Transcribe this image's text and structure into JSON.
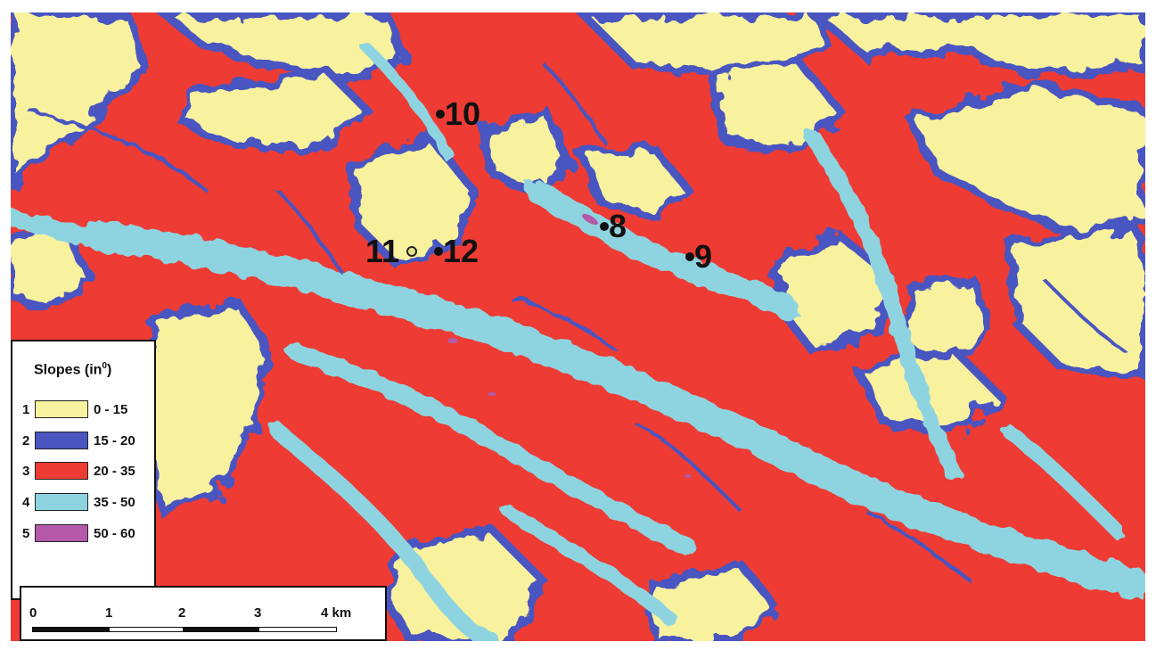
{
  "legend": {
    "title": "Slopes (in",
    "title_sup": "0",
    "title_close": ")",
    "classes": [
      {
        "num": "1",
        "range": "0 - 15",
        "color": "#f8f29e"
      },
      {
        "num": "2",
        "range": "15 - 20",
        "color": "#4a55c0"
      },
      {
        "num": "3",
        "range": "20 - 35",
        "color": "#ee3b34"
      },
      {
        "num": "4",
        "range": "35 - 50",
        "color": "#8ed4e0"
      },
      {
        "num": "5",
        "range": "50 - 60",
        "color": "#b45aa8"
      }
    ]
  },
  "sites": [
    {
      "label": "10",
      "marker": "black"
    },
    {
      "label": "8",
      "marker": "black"
    },
    {
      "label": "9",
      "marker": "black"
    },
    {
      "label": "11",
      "marker": "yellow"
    },
    {
      "label": "12",
      "marker": "black"
    }
  ],
  "scalebar": {
    "ticks": [
      "0",
      "1",
      "2",
      "3",
      "4 km"
    ]
  }
}
